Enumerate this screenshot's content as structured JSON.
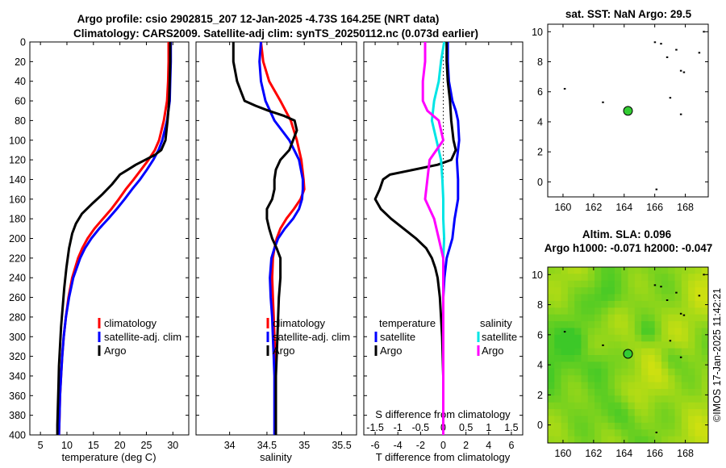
{
  "chart_data": [
    {
      "type": "line",
      "title_lines": [
        "Argo profile: csio 2902815_207 12-Jan-2025 -4.73S 164.25E (NRT data)",
        "Climatology: CARS2009. Satellite-adj clim: synTS_20250112.nc (0.073d earlier)"
      ],
      "xlabel": "temperature (deg C)",
      "xlim": [
        3,
        33
      ],
      "ylim": [
        0,
        400
      ],
      "x_ticks": [
        5,
        10,
        15,
        20,
        25,
        30
      ],
      "y_ticks": [
        0,
        20,
        40,
        60,
        80,
        100,
        120,
        140,
        160,
        180,
        200,
        220,
        240,
        260,
        280,
        300,
        320,
        340,
        360,
        380,
        400
      ],
      "legend": [
        "climatology",
        "satellite-adj. clim",
        "Argo"
      ],
      "series": [
        {
          "name": "climatology",
          "color": "#ff0000",
          "depth": [
            0,
            20,
            40,
            60,
            80,
            100,
            110,
            120,
            130,
            140,
            150,
            160,
            170,
            180,
            190,
            200,
            210,
            220,
            240,
            260,
            280,
            300,
            320,
            340,
            360,
            380,
            400
          ],
          "values": [
            29.2,
            29.2,
            29.1,
            28.9,
            28.3,
            27.4,
            26.6,
            25.4,
            24.0,
            22.6,
            21.1,
            19.8,
            18.4,
            16.8,
            15.2,
            13.9,
            12.9,
            12.1,
            11.0,
            10.3,
            9.8,
            9.4,
            9.1,
            8.9,
            8.7,
            8.6,
            8.5
          ]
        },
        {
          "name": "satellite-adj. clim",
          "color": "#0000ff",
          "depth": [
            0,
            20,
            40,
            60,
            80,
            100,
            110,
            120,
            130,
            140,
            150,
            160,
            170,
            180,
            190,
            200,
            210,
            220,
            240,
            260,
            280,
            300,
            320,
            340,
            360,
            380,
            400
          ],
          "values": [
            29.6,
            29.6,
            29.5,
            29.4,
            28.9,
            28.0,
            27.3,
            26.3,
            25.1,
            23.8,
            22.3,
            20.9,
            19.4,
            17.8,
            16.1,
            14.6,
            13.4,
            12.5,
            11.2,
            10.4,
            9.8,
            9.4,
            9.1,
            8.9,
            8.7,
            8.6,
            8.5
          ]
        },
        {
          "name": "Argo",
          "color": "#000000",
          "depth": [
            0,
            20,
            40,
            60,
            80,
            100,
            110,
            115,
            120,
            125,
            130,
            135,
            145,
            155,
            165,
            175,
            185,
            195,
            210,
            230,
            250,
            270,
            290,
            310,
            330,
            350,
            370,
            390,
            400
          ],
          "values": [
            29.5,
            29.5,
            29.4,
            29.3,
            29.0,
            28.6,
            27.8,
            26.6,
            24.8,
            23.0,
            21.5,
            20.0,
            18.5,
            16.7,
            14.7,
            12.8,
            11.7,
            11.0,
            10.4,
            9.9,
            9.5,
            9.2,
            8.9,
            8.7,
            8.5,
            8.4,
            8.3,
            8.2,
            8.2
          ]
        }
      ]
    },
    {
      "type": "line",
      "xlabel": "salinity",
      "xlim": [
        33.55,
        35.7
      ],
      "ylim": [
        0,
        400
      ],
      "x_ticks": [
        34,
        34.5,
        35,
        35.5
      ],
      "legend": [
        "climatology",
        "satellite-adj. clim",
        "Argo"
      ],
      "series": [
        {
          "name": "climatology",
          "color": "#ff0000",
          "depth": [
            0,
            20,
            40,
            60,
            80,
            100,
            120,
            140,
            150,
            160,
            170,
            180,
            190,
            200,
            210,
            220,
            240,
            260,
            280,
            300,
            320,
            340,
            360,
            380,
            400
          ],
          "values": [
            34.42,
            34.45,
            34.53,
            34.68,
            34.82,
            34.9,
            34.96,
            34.99,
            35.0,
            34.95,
            34.86,
            34.76,
            34.68,
            34.63,
            34.6,
            34.58,
            34.57,
            34.58,
            34.59,
            34.6,
            34.61,
            34.61,
            34.61,
            34.61,
            34.61
          ]
        },
        {
          "name": "satellite-adj. clim",
          "color": "#0000ff",
          "depth": [
            0,
            20,
            40,
            60,
            80,
            100,
            120,
            140,
            150,
            160,
            170,
            180,
            190,
            200,
            210,
            220,
            240,
            260,
            280,
            300,
            320,
            340,
            360,
            380,
            400
          ],
          "values": [
            34.42,
            34.4,
            34.42,
            34.48,
            34.6,
            34.8,
            34.93,
            34.98,
            34.98,
            34.97,
            34.93,
            34.85,
            34.74,
            34.65,
            34.6,
            34.56,
            34.54,
            34.55,
            34.57,
            34.58,
            34.59,
            34.6,
            34.6,
            34.6,
            34.6
          ]
        },
        {
          "name": "Argo",
          "color": "#000000",
          "depth": [
            0,
            20,
            40,
            50,
            60,
            65,
            70,
            75,
            80,
            90,
            100,
            110,
            120,
            130,
            140,
            150,
            160,
            170,
            180,
            190,
            200,
            210,
            220,
            240,
            260,
            280,
            300,
            320,
            340,
            360,
            380,
            400
          ],
          "values": [
            34.05,
            34.05,
            34.1,
            34.15,
            34.2,
            34.35,
            34.52,
            34.72,
            34.87,
            34.9,
            34.85,
            34.8,
            34.68,
            34.62,
            34.6,
            34.6,
            34.57,
            34.5,
            34.5,
            34.53,
            34.57,
            34.63,
            34.68,
            34.68,
            34.66,
            34.65,
            34.64,
            34.63,
            34.62,
            34.62,
            34.62,
            34.62
          ]
        }
      ]
    },
    {
      "type": "line",
      "xlabel": "T difference from climatology",
      "top_axis_label": "S difference from climatology",
      "xlim": [
        -7,
        7
      ],
      "ylim": [
        0,
        400
      ],
      "x_ticks": [
        -6,
        -4,
        -2,
        0,
        2,
        4,
        6
      ],
      "s_ticks": [
        -1.5,
        -1,
        -0.5,
        0,
        0.5,
        1,
        1.5
      ],
      "s_tick_labels": [
        "-1.5",
        "-1",
        "-0.5",
        "0",
        "0.5",
        "1",
        "1.5"
      ],
      "s_range": [
        -1.75,
        1.75
      ],
      "legend_groups": [
        {
          "title": "temperature",
          "items": [
            "satellite",
            "Argo"
          ]
        },
        {
          "title": "salinity",
          "items": [
            "satellite",
            "Argo"
          ]
        }
      ],
      "series": [
        {
          "name": "temperature satellite",
          "color": "#0000ff",
          "units": "T",
          "depth": [
            0,
            20,
            40,
            60,
            70,
            80,
            100,
            120,
            140,
            160,
            180,
            200,
            220,
            240,
            260,
            280,
            300,
            320,
            340,
            360,
            380,
            400
          ],
          "values": [
            0.4,
            0.4,
            0.5,
            0.8,
            1.1,
            1.3,
            1.4,
            1.2,
            1.3,
            1.3,
            1.0,
            0.8,
            0.3,
            0.1,
            0.0,
            0.0,
            0.0,
            0.0,
            0.0,
            0.0,
            0.0,
            0.0
          ]
        },
        {
          "name": "temperature Argo",
          "color": "#000000",
          "units": "T",
          "depth": [
            0,
            20,
            40,
            60,
            80,
            100,
            110,
            120,
            125,
            135,
            140,
            150,
            160,
            170,
            180,
            190,
            200,
            210,
            220,
            230,
            240,
            260,
            280,
            300,
            340,
            400
          ],
          "values": [
            0.3,
            0.3,
            0.4,
            0.6,
            0.7,
            0.9,
            1.1,
            0.7,
            -0.5,
            -4.7,
            -5.3,
            -5.6,
            -6.0,
            -5.5,
            -4.6,
            -3.5,
            -2.4,
            -1.5,
            -1.0,
            -0.7,
            -0.5,
            -0.3,
            -0.2,
            -0.1,
            0.0,
            0.0
          ]
        },
        {
          "name": "salinity satellite",
          "color": "#00e5e5",
          "units": "S",
          "depth": [
            0,
            20,
            40,
            60,
            80,
            100,
            120,
            140,
            160,
            180,
            200,
            220,
            240,
            260,
            280,
            300,
            320,
            340,
            360,
            380,
            400
          ],
          "values": [
            0.02,
            -0.05,
            -0.1,
            -0.2,
            -0.25,
            -0.15,
            -0.05,
            -0.02,
            0.0,
            0.0,
            0.02,
            0.0,
            0.0,
            0.0,
            0.0,
            0.0,
            0.0,
            0.0,
            0.0,
            0.0,
            0.0
          ]
        },
        {
          "name": "salinity Argo",
          "color": "#ff00ff",
          "units": "S",
          "depth": [
            0,
            20,
            40,
            60,
            70,
            80,
            100,
            110,
            120,
            140,
            160,
            180,
            200,
            220,
            240,
            260,
            280,
            300,
            320,
            360,
            400
          ],
          "values": [
            -0.4,
            -0.4,
            -0.45,
            -0.45,
            -0.35,
            -0.1,
            0.0,
            -0.15,
            -0.3,
            -0.35,
            -0.4,
            -0.2,
            -0.1,
            0.0,
            0.0,
            0.0,
            0.0,
            0.0,
            0.0,
            0.0,
            0.0
          ]
        }
      ]
    },
    {
      "type": "scatter",
      "title": "sat. SST: NaN Argo: 29.5",
      "xlim": [
        159,
        169.5
      ],
      "ylim": [
        -1,
        10.5
      ],
      "x_ticks": [
        160,
        162,
        164,
        166,
        168
      ],
      "y_ticks": [
        0,
        2,
        4,
        6,
        8,
        10
      ],
      "marker": {
        "x": 164.25,
        "y": 4.73,
        "color": "#33cc33"
      }
    },
    {
      "type": "heatmap",
      "title_lines": [
        "Altim. SLA: 0.096",
        "Argo h1000: -0.071 h2000: -0.047"
      ],
      "xlim": [
        159,
        169.5
      ],
      "ylim": [
        -1.2,
        10.5
      ],
      "x_ticks": [
        160,
        162,
        164,
        166,
        168
      ],
      "y_ticks": [
        0,
        2,
        4,
        6,
        8,
        10
      ],
      "marker": {
        "x": 164.25,
        "y": 4.73,
        "color": "#33cc33"
      }
    }
  ],
  "watermark": "©IMOS 17-Jan-2025 11:42:21"
}
